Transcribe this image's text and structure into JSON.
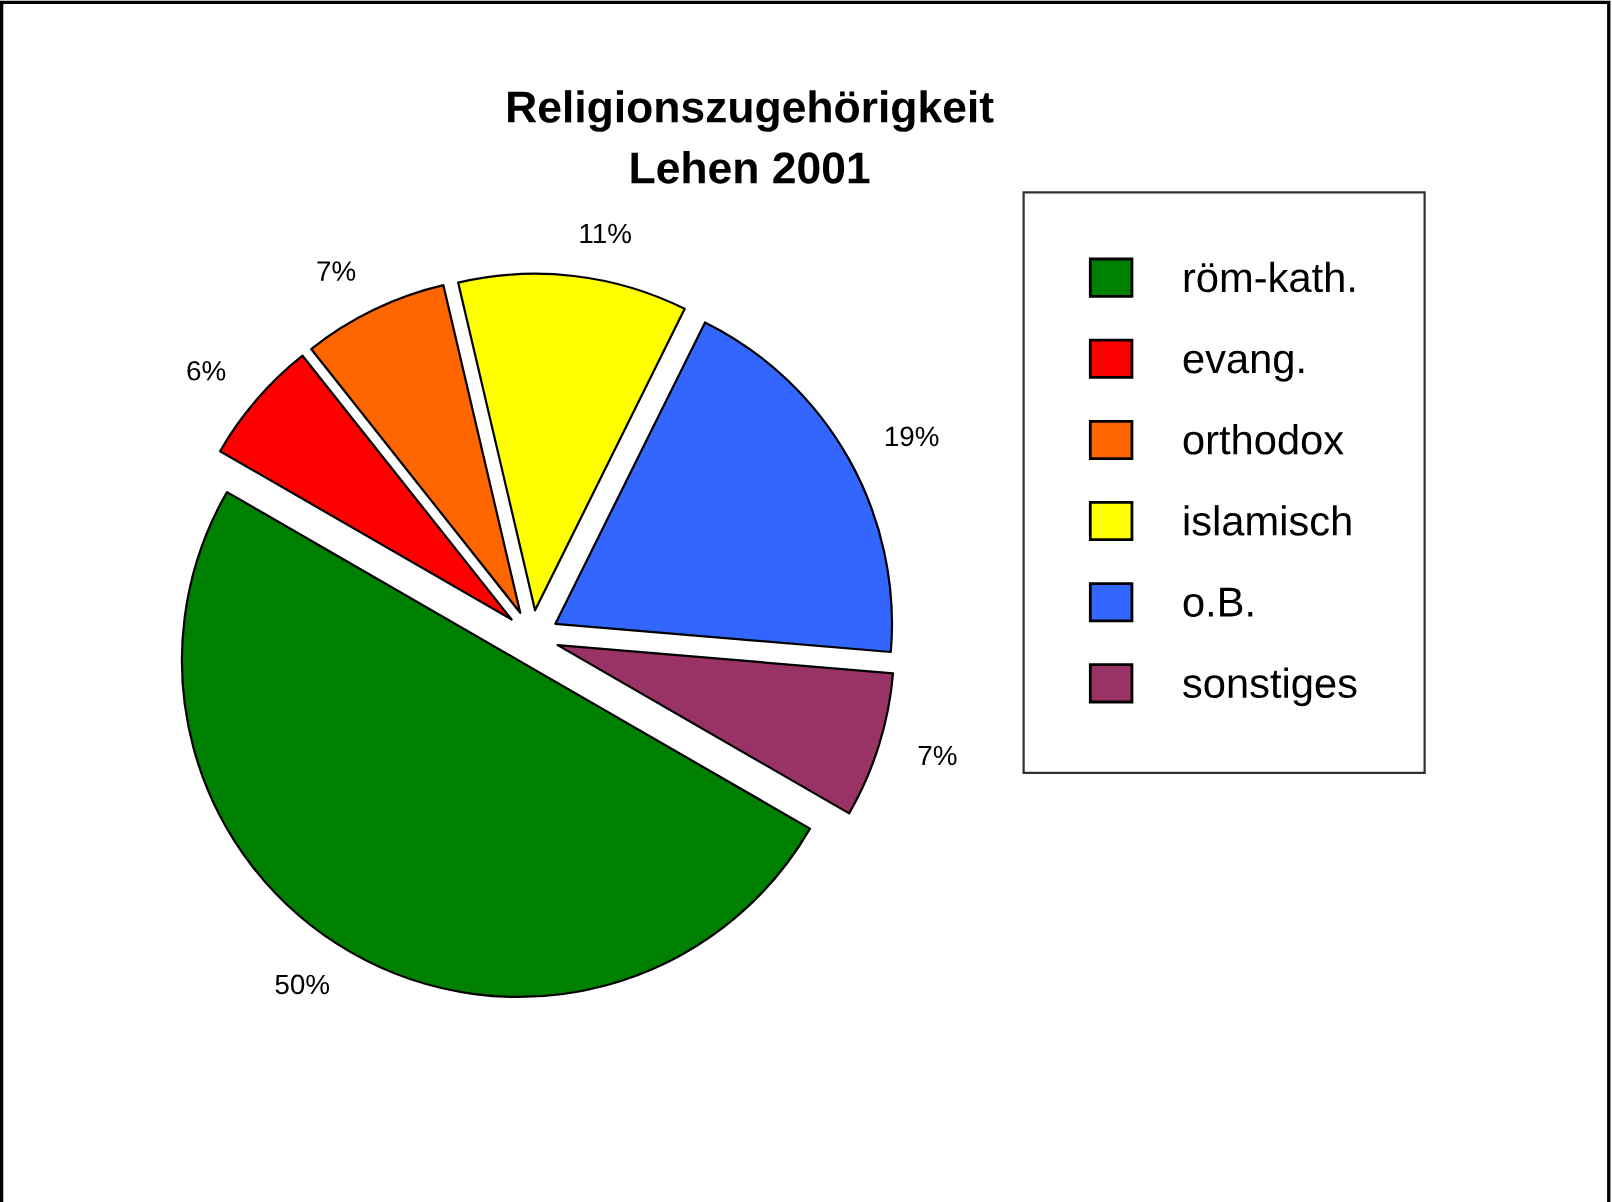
{
  "chart_data": {
    "type": "pie",
    "title": "Religionszugehörigkeit\nLehen 2001",
    "categories": [
      "röm-kath.",
      "evang.",
      "orthodox",
      "islamisch",
      "o.B.",
      "sonstiges"
    ],
    "values": [
      50,
      6,
      7,
      11,
      19,
      7
    ],
    "value_labels": [
      "50%",
      "6%",
      "7%",
      "11%",
      "19%",
      "7%"
    ],
    "colors": [
      "#008000",
      "#ff0000",
      "#ff6600",
      "#ffff00",
      "#3366ff",
      "#993366"
    ],
    "legend": "right"
  }
}
